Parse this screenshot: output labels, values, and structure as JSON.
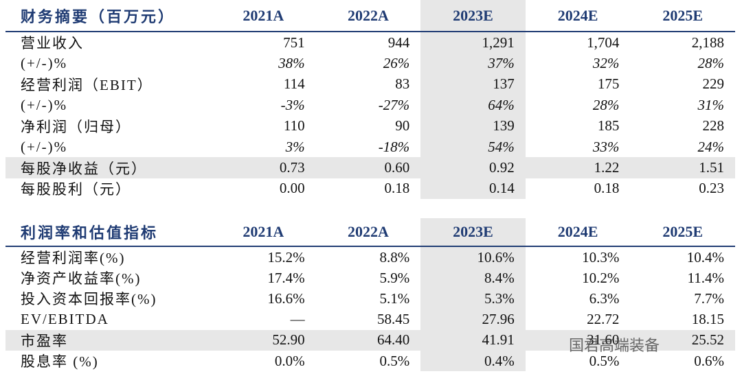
{
  "tables": [
    {
      "header": [
        "财务摘要（百万元）",
        "2021A",
        "2022A",
        "2023E",
        "2024E",
        "2025E"
      ],
      "rows": [
        [
          "营业收入",
          "751",
          "944",
          "1,291",
          "1,704",
          "2,188"
        ],
        [
          "(+/-)%",
          "38%",
          "26%",
          "37%",
          "32%",
          "28%"
        ],
        [
          "经营利润（EBIT）",
          "114",
          "83",
          "137",
          "175",
          "229"
        ],
        [
          "(+/-)%",
          "-3%",
          "-27%",
          "64%",
          "28%",
          "31%"
        ],
        [
          "净利润（归母）",
          "110",
          "90",
          "139",
          "185",
          "228"
        ],
        [
          "(+/-)%",
          "3%",
          "-18%",
          "54%",
          "33%",
          "24%"
        ],
        [
          "每股净收益（元）",
          "0.73",
          "0.60",
          "0.92",
          "1.22",
          "1.51"
        ],
        [
          "每股股利（元）",
          "0.00",
          "0.18",
          "0.14",
          "0.18",
          "0.23"
        ]
      ]
    },
    {
      "header": [
        "利润率和估值指标",
        "2021A",
        "2022A",
        "2023E",
        "2024E",
        "2025E"
      ],
      "rows": [
        [
          "经营利润率(%)",
          "15.2%",
          "8.8%",
          "10.6%",
          "10.3%",
          "10.4%"
        ],
        [
          "净资产收益率(%)",
          "17.4%",
          "5.9%",
          "8.4%",
          "10.2%",
          "11.4%"
        ],
        [
          "投入资本回报率(%)",
          "16.6%",
          "5.1%",
          "5.3%",
          "6.3%",
          "7.7%"
        ],
        [
          "EV/EBITDA",
          "—",
          "58.45",
          "27.96",
          "22.72",
          "18.15"
        ],
        [
          "市盈率",
          "52.90",
          "64.40",
          "41.91",
          "31.60",
          "25.52"
        ],
        [
          "股息率 (%)",
          "0.0%",
          "0.5%",
          "0.4%",
          "0.5%",
          "0.6%"
        ]
      ]
    }
  ],
  "watermark": "国君高端装备"
}
